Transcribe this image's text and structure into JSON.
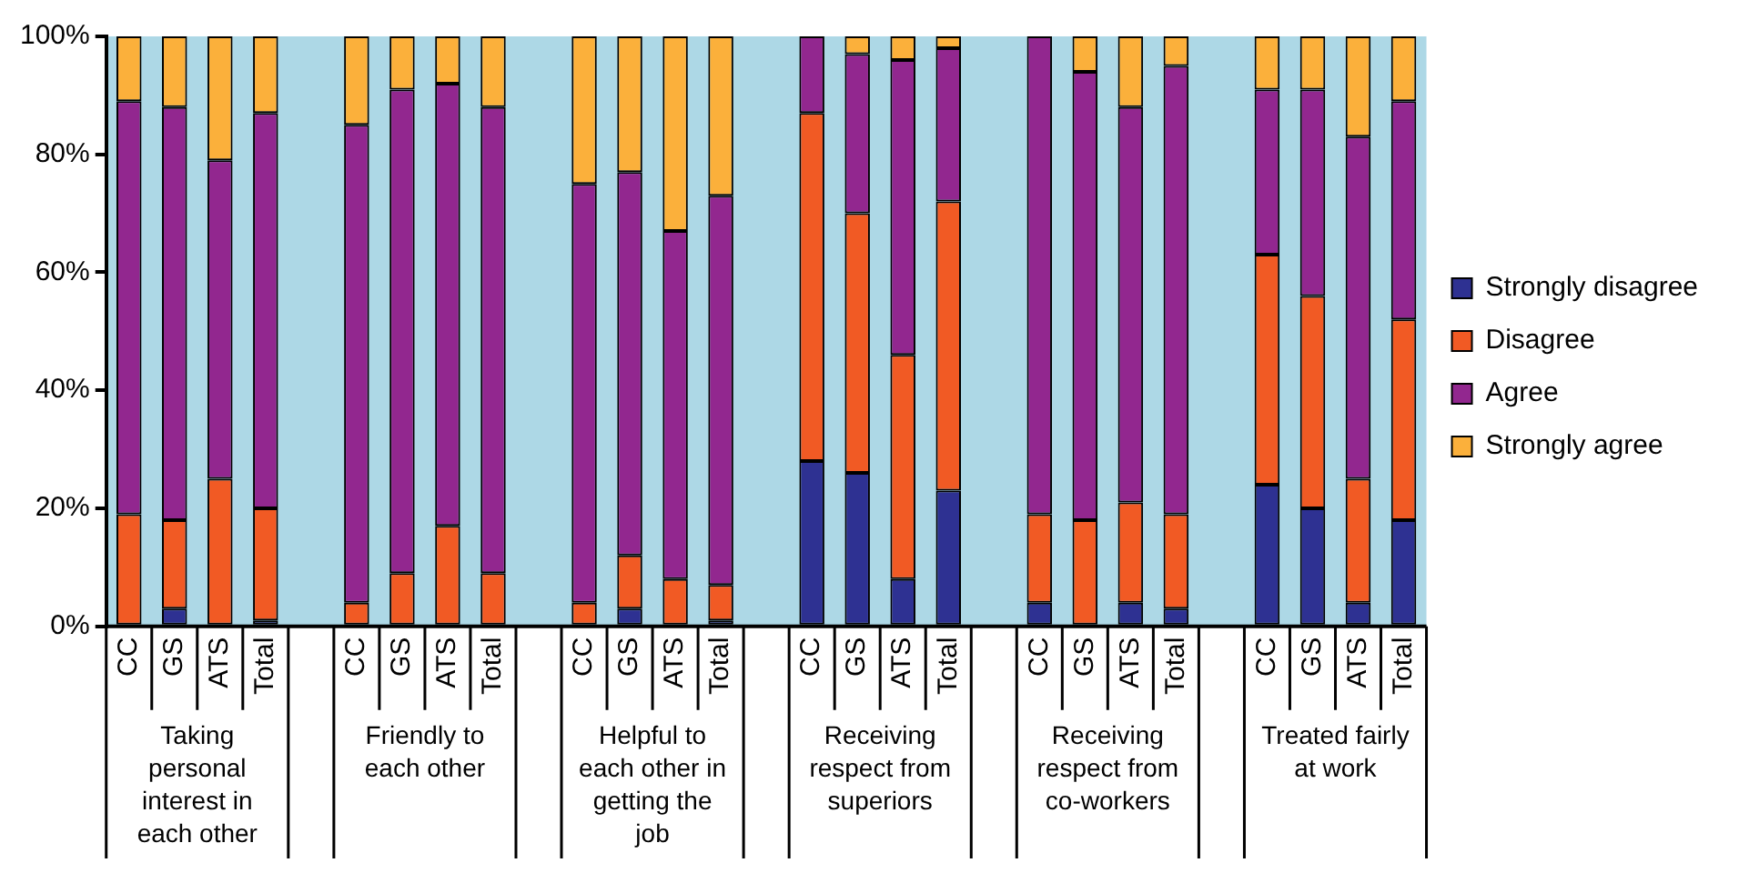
{
  "chart_data": {
    "type": "bar",
    "stacked": true,
    "categories": [
      "CC",
      "GS",
      "ATS",
      "Total",
      null,
      "CC",
      "GS",
      "ATS",
      "Total",
      null,
      "CC",
      "GS",
      "ATS",
      "Total",
      null,
      "CC",
      "GS",
      "ATS",
      "Total",
      null,
      "CC",
      "GS",
      "ATS",
      "Total",
      null,
      "CC",
      "GS",
      "ATS",
      "Total"
    ],
    "series": [
      {
        "name": "Strongly disagree",
        "color": "#2e3192",
        "values": [
          0,
          3,
          0,
          1,
          null,
          0,
          0,
          0,
          0,
          null,
          0,
          3,
          0,
          1,
          null,
          28,
          26,
          8,
          23,
          null,
          4,
          0,
          4,
          3,
          null,
          24,
          20,
          4,
          18
        ]
      },
      {
        "name": "Disagree",
        "color": "#f15a24",
        "values": [
          19,
          15,
          25,
          19,
          null,
          4,
          9,
          17,
          9,
          null,
          4,
          9,
          8,
          6,
          null,
          59,
          44,
          38,
          49,
          null,
          15,
          18,
          17,
          16,
          null,
          39,
          36,
          21,
          34
        ]
      },
      {
        "name": "Agree",
        "color": "#92278f",
        "values": [
          70,
          70,
          54,
          67,
          null,
          81,
          82,
          75,
          79,
          null,
          71,
          65,
          59,
          66,
          null,
          13,
          27,
          50,
          26,
          null,
          81,
          76,
          67,
          76,
          null,
          28,
          35,
          58,
          37
        ]
      },
      {
        "name": "Strongly agree",
        "color": "#fbb03b",
        "values": [
          11,
          12,
          21,
          13,
          null,
          15,
          9,
          8,
          12,
          null,
          25,
          23,
          33,
          27,
          null,
          0,
          3,
          4,
          2,
          null,
          0,
          6,
          12,
          5,
          null,
          9,
          9,
          17,
          11
        ]
      }
    ],
    "annotations": [
      "Taking personal interest in each other",
      "Friendly to each other",
      "Helpful to each other in getting the job",
      "Receiving respect from superiors",
      "Receiving respect from co-workers",
      "Treated fairly at work"
    ],
    "ylim": [
      0,
      100
    ],
    "yticks": [
      {
        "value": 0,
        "label": "0%"
      },
      {
        "value": 20,
        "label": "20%"
      },
      {
        "value": 40,
        "label": "40%"
      },
      {
        "value": 60,
        "label": "60%"
      },
      {
        "value": 80,
        "label": "80%"
      },
      {
        "value": 100,
        "label": "100%"
      }
    ],
    "grid": false,
    "legend": "right"
  }
}
